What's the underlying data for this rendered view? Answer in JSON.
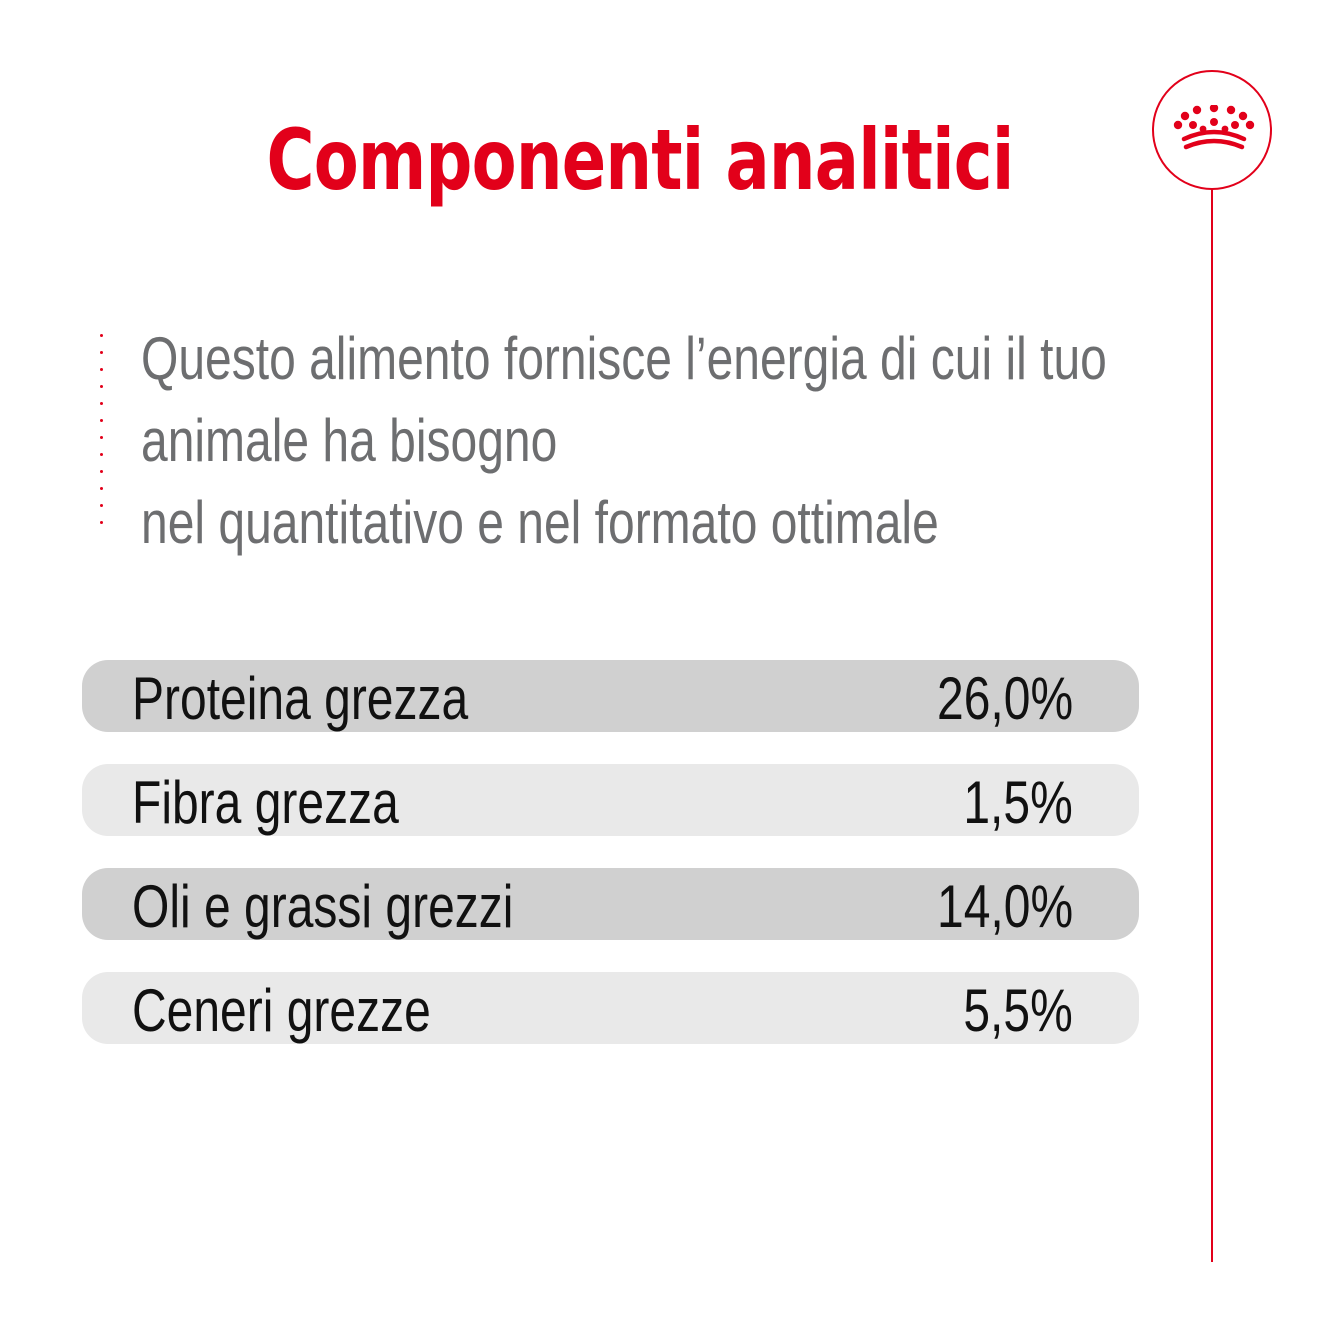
{
  "title": "Componenti analitici",
  "logo": {
    "icon": "royal-crown-icon",
    "color": "#e2001a"
  },
  "intro": {
    "lines": [
      "Questo alimento fornisce l’energia di cui il tuo",
      "animale ha bisogno",
      "nel quantitativo e nel formato ottimale"
    ]
  },
  "components": [
    {
      "label": "Proteina grezza",
      "value": "26,0%"
    },
    {
      "label": "Fibra grezza",
      "value": "1,5%"
    },
    {
      "label": "Oli e grassi grezzi",
      "value": "14,0%"
    },
    {
      "label": "Ceneri grezze",
      "value": "5,5%"
    }
  ],
  "colors": {
    "accent": "#e2001a",
    "intro_text": "#6d6e70",
    "row_dark": "#d0d0d0",
    "row_light": "#e9e9e9"
  }
}
